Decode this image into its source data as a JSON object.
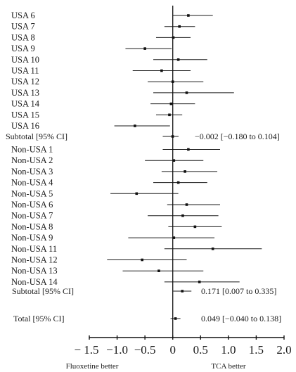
{
  "chart_data": {
    "type": "forest",
    "x_range": [
      -1.5,
      2.0
    ],
    "reference_line": 0,
    "x_ticks": [
      -1.5,
      -1.0,
      -0.5,
      0,
      0.5,
      1.0,
      1.5,
      2.0
    ],
    "x_tick_labels": [
      "− 1.5",
      "−1.0",
      "−0.5",
      "0",
      "0.5",
      "1.0",
      "1.5",
      "2.0"
    ],
    "left_caption": "Fluoxetine better",
    "right_caption": "TCA better",
    "groups": [
      {
        "name": "USA",
        "studies": [
          {
            "label": "USA 6",
            "estimate": 0.28,
            "lower": 0.0,
            "upper": 0.72
          },
          {
            "label": "USA 7",
            "estimate": 0.12,
            "lower": -0.15,
            "upper": 0.4
          },
          {
            "label": "USA 8",
            "estimate": 0.01,
            "lower": -0.3,
            "upper": 0.32
          },
          {
            "label": "USA 9",
            "estimate": -0.5,
            "lower": -0.85,
            "upper": -0.02
          },
          {
            "label": "USA 10",
            "estimate": 0.1,
            "lower": -0.35,
            "upper": 0.62
          },
          {
            "label": "USA 11",
            "estimate": -0.2,
            "lower": -0.72,
            "upper": 0.32
          },
          {
            "label": "USA 12",
            "estimate": 0.0,
            "lower": -0.45,
            "upper": 0.55
          },
          {
            "label": "USA 13",
            "estimate": 0.25,
            "lower": -0.35,
            "upper": 1.1
          },
          {
            "label": "USA 14",
            "estimate": -0.03,
            "lower": -0.4,
            "upper": 0.4
          },
          {
            "label": "USA 15",
            "estimate": -0.06,
            "lower": -0.3,
            "upper": 0.17
          },
          {
            "label": "USA 16",
            "estimate": -0.68,
            "lower": -1.05,
            "upper": -0.05
          }
        ],
        "subtotal": {
          "label": "Subtotal [95% CI]",
          "estimate": -0.002,
          "lower": -0.18,
          "upper": 0.104,
          "text": "−0.002 [−0.180 to 0.104]"
        }
      },
      {
        "name": "Non-USA",
        "studies": [
          {
            "label": "Non-USA 1",
            "estimate": 0.28,
            "lower": -0.18,
            "upper": 0.85
          },
          {
            "label": "Non-USA 2",
            "estimate": 0.02,
            "lower": -0.5,
            "upper": 0.55
          },
          {
            "label": "Non-USA 3",
            "estimate": 0.22,
            "lower": -0.2,
            "upper": 0.8
          },
          {
            "label": "Non-USA 4",
            "estimate": 0.1,
            "lower": -0.35,
            "upper": 0.62
          },
          {
            "label": "Non-USA 5",
            "estimate": -0.65,
            "lower": -1.12,
            "upper": 0.1
          },
          {
            "label": "Non-USA 6",
            "estimate": 0.25,
            "lower": -0.1,
            "upper": 0.85
          },
          {
            "label": "Non-USA 7",
            "estimate": 0.18,
            "lower": -0.45,
            "upper": 0.82
          },
          {
            "label": "Non-USA 8",
            "estimate": 0.4,
            "lower": -0.08,
            "upper": 0.88
          },
          {
            "label": "Non-USA 9",
            "estimate": 0.02,
            "lower": -0.8,
            "upper": 0.75
          },
          {
            "label": "Non-USA 11",
            "estimate": 0.72,
            "lower": -0.15,
            "upper": 1.6
          },
          {
            "label": "Non-USA 12",
            "estimate": -0.55,
            "lower": -1.18,
            "upper": 0.25
          },
          {
            "label": "Non-USA 13",
            "estimate": -0.25,
            "lower": -0.9,
            "upper": 0.55
          },
          {
            "label": "Non-USA 14",
            "estimate": 0.48,
            "lower": -0.15,
            "upper": 1.2
          }
        ],
        "subtotal": {
          "label": "Subtotal [95% CI]",
          "estimate": 0.171,
          "lower": 0.007,
          "upper": 0.335,
          "text": "0.171 [0.007 to 0.335]"
        }
      }
    ],
    "total": {
      "label": "Total [95% CI]",
      "estimate": 0.049,
      "lower": -0.04,
      "upper": 0.138,
      "text": "0.049 [−0.040 to 0.138]"
    }
  }
}
